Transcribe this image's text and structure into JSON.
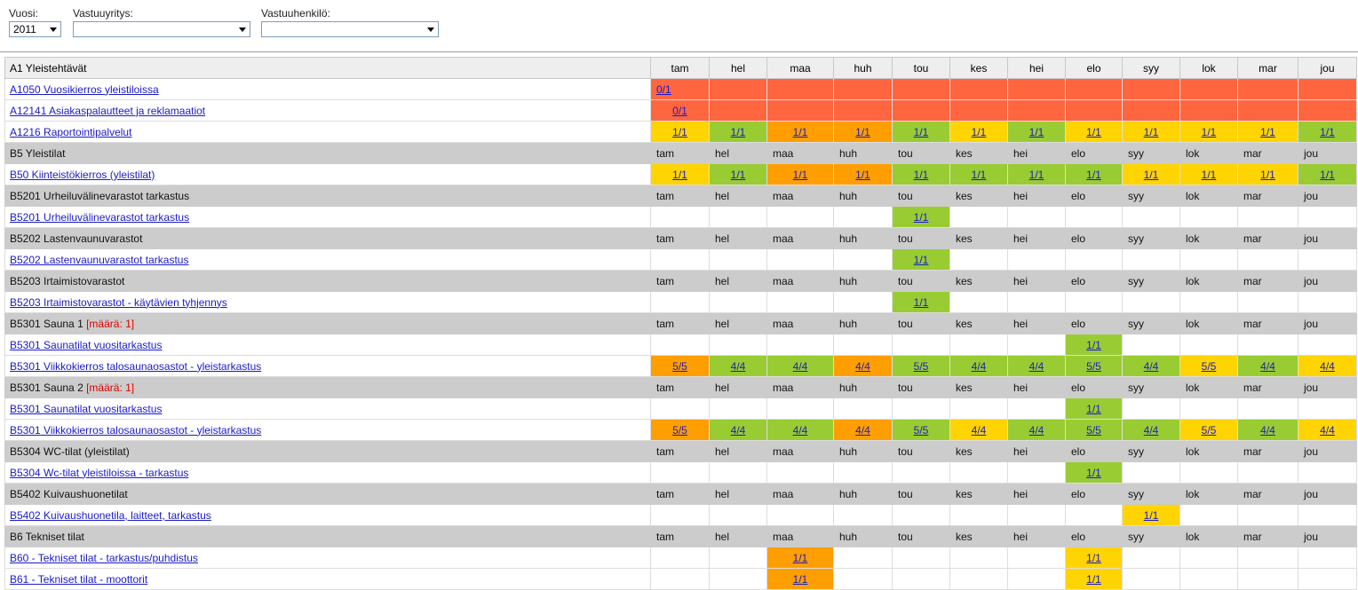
{
  "filters": {
    "year_label": "Vuosi:",
    "year_value": "2011",
    "unit_label": "Vastuuyritys:",
    "unit_value": "",
    "person_label": "Vastuuhenkilö:",
    "person_value": ""
  },
  "months": [
    "tam",
    "hel",
    "maa",
    "huh",
    "tou",
    "kes",
    "hei",
    "elo",
    "syy",
    "lok",
    "mar",
    "jou"
  ],
  "colors": {
    "red": "#ff6640",
    "orange": "#ff9e00",
    "yellow": "#ffd400",
    "green": "#99cc33",
    "header_gray": "#cccccc"
  },
  "rows": [
    {
      "type": "top",
      "label": "A1 Yleistehtävät"
    },
    {
      "type": "task",
      "label": "A1050 Vuosikierros yleistiloissa",
      "rowcolor": "red",
      "cells": [
        {
          "v": "0/1",
          "c": "red",
          "left": true
        },
        null,
        null,
        null,
        null,
        null,
        null,
        null,
        null,
        null,
        null,
        null
      ]
    },
    {
      "type": "task",
      "label": "A12141 Asiakaspalautteet ja reklamaatiot",
      "rowcolor": "red",
      "cells": [
        {
          "v": "0/1",
          "c": "red"
        },
        null,
        null,
        null,
        null,
        null,
        null,
        null,
        null,
        null,
        null,
        null
      ]
    },
    {
      "type": "task",
      "label": "A1216 Raportointipalvelut",
      "cells": [
        {
          "v": "1/1",
          "c": "yellow"
        },
        {
          "v": "1/1",
          "c": "green"
        },
        {
          "v": "1/1",
          "c": "orange"
        },
        {
          "v": "1/1",
          "c": "orange"
        },
        {
          "v": "1/1",
          "c": "green"
        },
        {
          "v": "1/1",
          "c": "yellow"
        },
        {
          "v": "1/1",
          "c": "green"
        },
        {
          "v": "1/1",
          "c": "yellow"
        },
        {
          "v": "1/1",
          "c": "yellow"
        },
        {
          "v": "1/1",
          "c": "yellow"
        },
        {
          "v": "1/1",
          "c": "yellow"
        },
        {
          "v": "1/1",
          "c": "green"
        }
      ]
    },
    {
      "type": "head",
      "label": "B5 Yleistilat"
    },
    {
      "type": "task",
      "label": "B50 Kiinteistökierros (yleistilat)",
      "cells": [
        {
          "v": "1/1",
          "c": "yellow"
        },
        {
          "v": "1/1",
          "c": "green"
        },
        {
          "v": "1/1",
          "c": "orange"
        },
        {
          "v": "1/1",
          "c": "orange"
        },
        {
          "v": "1/1",
          "c": "green"
        },
        {
          "v": "1/1",
          "c": "green"
        },
        {
          "v": "1/1",
          "c": "green"
        },
        {
          "v": "1/1",
          "c": "green"
        },
        {
          "v": "1/1",
          "c": "yellow"
        },
        {
          "v": "1/1",
          "c": "yellow"
        },
        {
          "v": "1/1",
          "c": "yellow"
        },
        {
          "v": "1/1",
          "c": "green"
        }
      ]
    },
    {
      "type": "head",
      "label": "B5201 Urheiluvälinevarastot tarkastus"
    },
    {
      "type": "task",
      "label": "B5201 Urheiluvälinevarastot tarkastus",
      "cells": [
        null,
        null,
        null,
        null,
        {
          "v": "1/1",
          "c": "green"
        },
        null,
        null,
        null,
        null,
        null,
        null,
        null
      ]
    },
    {
      "type": "head",
      "label": "B5202 Lastenvaunuvarastot"
    },
    {
      "type": "task",
      "label": "B5202 Lastenvaunuvarastot tarkastus",
      "cells": [
        null,
        null,
        null,
        null,
        {
          "v": "1/1",
          "c": "green"
        },
        null,
        null,
        null,
        null,
        null,
        null,
        null
      ]
    },
    {
      "type": "head",
      "label": "B5203 Irtaimistovarastot"
    },
    {
      "type": "task",
      "label": "B5203 Irtaimistovarastot - käytävien tyhjennys",
      "cells": [
        null,
        null,
        null,
        null,
        {
          "v": "1/1",
          "c": "green"
        },
        null,
        null,
        null,
        null,
        null,
        null,
        null
      ]
    },
    {
      "type": "head",
      "label": "B5301 Sauna 1",
      "qty": "[määrä: 1]"
    },
    {
      "type": "task",
      "label": "B5301 Saunatilat vuositarkastus",
      "cells": [
        null,
        null,
        null,
        null,
        null,
        null,
        null,
        {
          "v": "1/1",
          "c": "green"
        },
        null,
        null,
        null,
        null
      ]
    },
    {
      "type": "task",
      "label": "B5301 Viikkokierros talosaunaosastot - yleistarkastus",
      "cells": [
        {
          "v": "5/5",
          "c": "orange"
        },
        {
          "v": "4/4",
          "c": "green"
        },
        {
          "v": "4/4",
          "c": "green"
        },
        {
          "v": "4/4",
          "c": "orange"
        },
        {
          "v": "5/5",
          "c": "green"
        },
        {
          "v": "4/4",
          "c": "green"
        },
        {
          "v": "4/4",
          "c": "green"
        },
        {
          "v": "5/5",
          "c": "green"
        },
        {
          "v": "4/4",
          "c": "green"
        },
        {
          "v": "5/5",
          "c": "yellow"
        },
        {
          "v": "4/4",
          "c": "green"
        },
        {
          "v": "4/4",
          "c": "yellow"
        }
      ]
    },
    {
      "type": "head",
      "label": "B5301 Sauna 2",
      "qty": "[määrä: 1]"
    },
    {
      "type": "task",
      "label": "B5301 Saunatilat vuositarkastus",
      "cells": [
        null,
        null,
        null,
        null,
        null,
        null,
        null,
        {
          "v": "1/1",
          "c": "green"
        },
        null,
        null,
        null,
        null
      ]
    },
    {
      "type": "task",
      "label": "B5301 Viikkokierros talosaunaosastot - yleistarkastus",
      "cells": [
        {
          "v": "5/5",
          "c": "orange"
        },
        {
          "v": "4/4",
          "c": "green"
        },
        {
          "v": "4/4",
          "c": "green"
        },
        {
          "v": "4/4",
          "c": "orange"
        },
        {
          "v": "5/5",
          "c": "green"
        },
        {
          "v": "4/4",
          "c": "yellow"
        },
        {
          "v": "4/4",
          "c": "green"
        },
        {
          "v": "5/5",
          "c": "green"
        },
        {
          "v": "4/4",
          "c": "green"
        },
        {
          "v": "5/5",
          "c": "yellow"
        },
        {
          "v": "4/4",
          "c": "green"
        },
        {
          "v": "4/4",
          "c": "yellow"
        }
      ]
    },
    {
      "type": "head",
      "label": "B5304 WC-tilat (yleistilat)"
    },
    {
      "type": "task",
      "label": "B5304 Wc-tilat yleistiloissa - tarkastus",
      "cells": [
        null,
        null,
        null,
        null,
        null,
        null,
        null,
        {
          "v": "1/1",
          "c": "green"
        },
        null,
        null,
        null,
        null
      ]
    },
    {
      "type": "head",
      "label": "B5402 Kuivaushuonetilat"
    },
    {
      "type": "task",
      "label": "B5402 Kuivaushuonetila, laitteet, tarkastus",
      "cells": [
        null,
        null,
        null,
        null,
        null,
        null,
        null,
        null,
        {
          "v": "1/1",
          "c": "yellow"
        },
        null,
        null,
        null
      ]
    },
    {
      "type": "head",
      "label": "B6 Tekniset tilat"
    },
    {
      "type": "task",
      "label": "B60 - Tekniset tilat - tarkastus/puhdistus",
      "cells": [
        null,
        null,
        {
          "v": "1/1",
          "c": "orange"
        },
        null,
        null,
        null,
        null,
        {
          "v": "1/1",
          "c": "yellow"
        },
        null,
        null,
        null,
        null
      ]
    },
    {
      "type": "task",
      "label": "B61 - Tekniset tilat - moottorit",
      "cells": [
        null,
        null,
        {
          "v": "1/1",
          "c": "orange"
        },
        null,
        null,
        null,
        null,
        {
          "v": "1/1",
          "c": "yellow"
        },
        null,
        null,
        null,
        null
      ]
    }
  ]
}
